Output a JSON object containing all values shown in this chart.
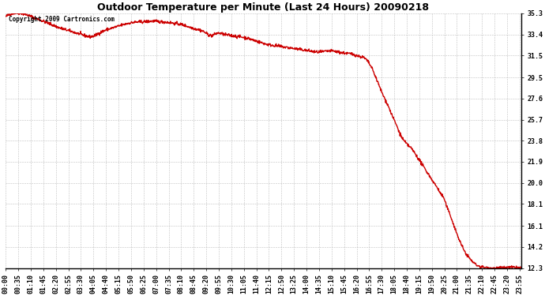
{
  "title": "Outdoor Temperature per Minute (Last 24 Hours) 20090218",
  "copyright_text": "Copyright 2009 Cartronics.com",
  "line_color": "#cc0000",
  "background_color": "#ffffff",
  "plot_bg_color": "#ffffff",
  "grid_color": "#c0c0c0",
  "yticks": [
    12.3,
    14.2,
    16.1,
    18.1,
    20.0,
    21.9,
    23.8,
    25.7,
    27.6,
    29.5,
    31.5,
    33.4,
    35.3
  ],
  "ymin": 12.3,
  "ymax": 35.3,
  "title_fontsize": 9,
  "tick_fontsize": 6,
  "line_width": 1.0,
  "control_points": [
    [
      0,
      35.0
    ],
    [
      20,
      35.3
    ],
    [
      50,
      35.25
    ],
    [
      80,
      34.9
    ],
    [
      120,
      34.4
    ],
    [
      150,
      34.0
    ],
    [
      180,
      33.7
    ],
    [
      200,
      33.5
    ],
    [
      220,
      33.3
    ],
    [
      240,
      33.2
    ],
    [
      260,
      33.5
    ],
    [
      280,
      33.8
    ],
    [
      300,
      34.0
    ],
    [
      330,
      34.3
    ],
    [
      360,
      34.5
    ],
    [
      390,
      34.55
    ],
    [
      410,
      34.6
    ],
    [
      430,
      34.55
    ],
    [
      450,
      34.5
    ],
    [
      470,
      34.4
    ],
    [
      490,
      34.3
    ],
    [
      510,
      34.1
    ],
    [
      530,
      33.9
    ],
    [
      550,
      33.7
    ],
    [
      560,
      33.5
    ],
    [
      575,
      33.3
    ],
    [
      590,
      33.5
    ],
    [
      610,
      33.4
    ],
    [
      630,
      33.3
    ],
    [
      650,
      33.2
    ],
    [
      670,
      33.1
    ],
    [
      690,
      32.9
    ],
    [
      710,
      32.7
    ],
    [
      730,
      32.5
    ],
    [
      750,
      32.4
    ],
    [
      770,
      32.3
    ],
    [
      790,
      32.2
    ],
    [
      810,
      32.1
    ],
    [
      830,
      32.0
    ],
    [
      850,
      31.9
    ],
    [
      870,
      31.8
    ],
    [
      890,
      31.85
    ],
    [
      910,
      31.9
    ],
    [
      930,
      31.8
    ],
    [
      950,
      31.7
    ],
    [
      970,
      31.6
    ],
    [
      980,
      31.5
    ],
    [
      990,
      31.4
    ],
    [
      1000,
      31.3
    ],
    [
      1010,
      31.0
    ],
    [
      1020,
      30.5
    ],
    [
      1030,
      29.8
    ],
    [
      1040,
      29.0
    ],
    [
      1050,
      28.2
    ],
    [
      1060,
      27.5
    ],
    [
      1070,
      26.8
    ],
    [
      1080,
      26.0
    ],
    [
      1090,
      25.3
    ],
    [
      1100,
      24.5
    ],
    [
      1110,
      23.9
    ],
    [
      1120,
      23.5
    ],
    [
      1130,
      23.2
    ],
    [
      1140,
      22.8
    ],
    [
      1150,
      22.3
    ],
    [
      1160,
      21.8
    ],
    [
      1170,
      21.3
    ],
    [
      1180,
      20.8
    ],
    [
      1190,
      20.3
    ],
    [
      1200,
      19.8
    ],
    [
      1210,
      19.3
    ],
    [
      1215,
      19.0
    ],
    [
      1220,
      18.8
    ],
    [
      1225,
      18.5
    ],
    [
      1230,
      18.0
    ],
    [
      1240,
      17.2
    ],
    [
      1250,
      16.3
    ],
    [
      1260,
      15.4
    ],
    [
      1270,
      14.6
    ],
    [
      1280,
      13.9
    ],
    [
      1290,
      13.4
    ],
    [
      1300,
      13.0
    ],
    [
      1310,
      12.7
    ],
    [
      1320,
      12.5
    ],
    [
      1330,
      12.4
    ],
    [
      1340,
      12.35
    ],
    [
      1350,
      12.3
    ],
    [
      1380,
      12.3
    ],
    [
      1410,
      12.35
    ],
    [
      1439,
      12.3
    ]
  ]
}
